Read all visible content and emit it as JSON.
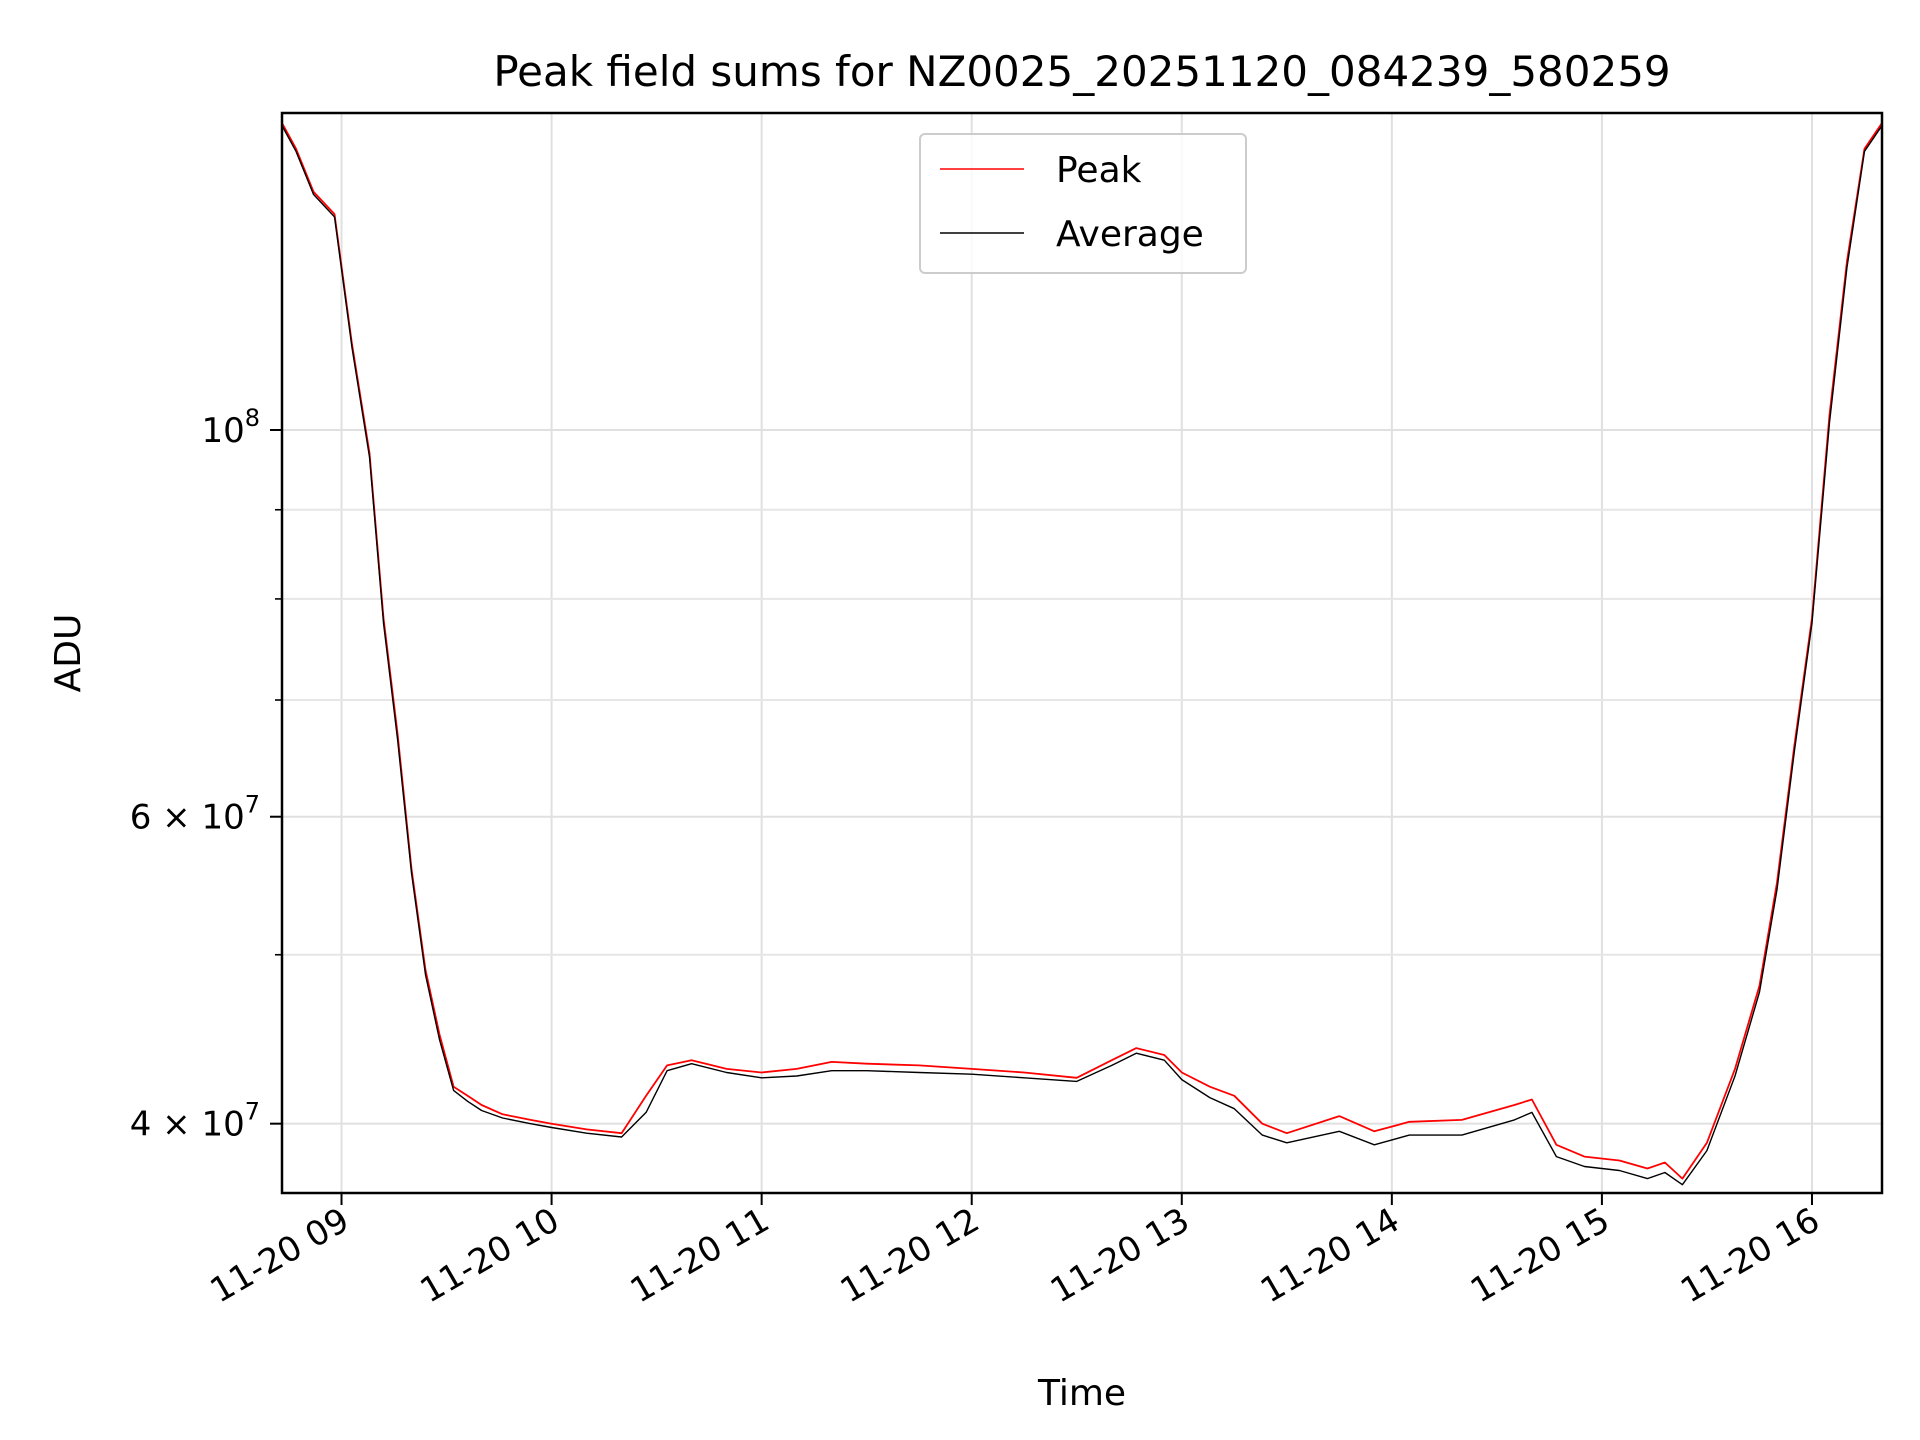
{
  "chart_data": {
    "type": "line",
    "title": "Peak field sums for NZ0025_20251120_084239_580259",
    "xlabel": "Time",
    "ylabel": "ADU",
    "y_scale": "log",
    "ylim": [
      36500000,
      152000000
    ],
    "xlim": [
      "2025-11-20T08:43",
      "2025-11-20T16:20"
    ],
    "grid": true,
    "legend_position": "top-center",
    "x_ticks": [
      {
        "t": "2025-11-20T09:00",
        "label": "11-20 09"
      },
      {
        "t": "2025-11-20T10:00",
        "label": "11-20 10"
      },
      {
        "t": "2025-11-20T11:00",
        "label": "11-20 11"
      },
      {
        "t": "2025-11-20T12:00",
        "label": "11-20 12"
      },
      {
        "t": "2025-11-20T13:00",
        "label": "11-20 13"
      },
      {
        "t": "2025-11-20T14:00",
        "label": "11-20 14"
      },
      {
        "t": "2025-11-20T15:00",
        "label": "11-20 15"
      },
      {
        "t": "2025-11-20T16:00",
        "label": "11-20 16"
      }
    ],
    "y_major_ticks": [
      {
        "value": 40000000,
        "base": "4",
        "exp": "7"
      },
      {
        "value": 60000000,
        "base": "6",
        "exp": "7"
      },
      {
        "value": 100000000,
        "base": "10",
        "exp": "8"
      }
    ],
    "y_minor_ticks": [
      50000000,
      70000000,
      80000000,
      90000000
    ],
    "series": [
      {
        "name": "Peak",
        "color": "#ff0000",
        "x": [
          "2025-11-20T08:43",
          "2025-11-20T08:47",
          "2025-11-20T08:52",
          "2025-11-20T08:58",
          "2025-11-20T09:03",
          "2025-11-20T09:08",
          "2025-11-20T09:12",
          "2025-11-20T09:16",
          "2025-11-20T09:20",
          "2025-11-20T09:24",
          "2025-11-20T09:28",
          "2025-11-20T09:32",
          "2025-11-20T09:36",
          "2025-11-20T09:40",
          "2025-11-20T09:46",
          "2025-11-20T09:54",
          "2025-11-20T10:00",
          "2025-11-20T10:10",
          "2025-11-20T10:20",
          "2025-11-20T10:27",
          "2025-11-20T10:33",
          "2025-11-20T10:40",
          "2025-11-20T10:50",
          "2025-11-20T11:00",
          "2025-11-20T11:10",
          "2025-11-20T11:20",
          "2025-11-20T11:30",
          "2025-11-20T11:45",
          "2025-11-20T12:00",
          "2025-11-20T12:15",
          "2025-11-20T12:30",
          "2025-11-20T12:40",
          "2025-11-20T12:47",
          "2025-11-20T12:55",
          "2025-11-20T13:00",
          "2025-11-20T13:08",
          "2025-11-20T13:15",
          "2025-11-20T13:23",
          "2025-11-20T13:30",
          "2025-11-20T13:45",
          "2025-11-20T13:55",
          "2025-11-20T14:05",
          "2025-11-20T14:20",
          "2025-11-20T14:35",
          "2025-11-20T14:40",
          "2025-11-20T14:47",
          "2025-11-20T14:55",
          "2025-11-20T15:05",
          "2025-11-20T15:13",
          "2025-11-20T15:18",
          "2025-11-20T15:23",
          "2025-11-20T15:30",
          "2025-11-20T15:38",
          "2025-11-20T15:45",
          "2025-11-20T15:50",
          "2025-11-20T15:55",
          "2025-11-20T16:00",
          "2025-11-20T16:05",
          "2025-11-20T16:10",
          "2025-11-20T16:15",
          "2025-11-20T16:20"
        ],
        "y": [
          150000000,
          145000000,
          137000000,
          133000000,
          112000000,
          97000000,
          78000000,
          67000000,
          56000000,
          49000000,
          45000000,
          42000000,
          41500000,
          41000000,
          40500000,
          40200000,
          40000000,
          39700000,
          39500000,
          41500000,
          43200000,
          43500000,
          43000000,
          42800000,
          43000000,
          43400000,
          43300000,
          43200000,
          43000000,
          42800000,
          42500000,
          43500000,
          44200000,
          43800000,
          42800000,
          42000000,
          41500000,
          40000000,
          39500000,
          40400000,
          39600000,
          40100000,
          40200000,
          41000000,
          41300000,
          38900000,
          38300000,
          38100000,
          37700000,
          38000000,
          37200000,
          39000000,
          43000000,
          48000000,
          55000000,
          66000000,
          78000000,
          102000000,
          125000000,
          145000000,
          150000000
        ]
      },
      {
        "name": "Average",
        "color": "#000000",
        "x": [
          "2025-11-20T08:43",
          "2025-11-20T08:47",
          "2025-11-20T08:52",
          "2025-11-20T08:58",
          "2025-11-20T09:03",
          "2025-11-20T09:08",
          "2025-11-20T09:12",
          "2025-11-20T09:16",
          "2025-11-20T09:20",
          "2025-11-20T09:24",
          "2025-11-20T09:28",
          "2025-11-20T09:32",
          "2025-11-20T09:36",
          "2025-11-20T09:40",
          "2025-11-20T09:46",
          "2025-11-20T09:54",
          "2025-11-20T10:00",
          "2025-11-20T10:10",
          "2025-11-20T10:20",
          "2025-11-20T10:27",
          "2025-11-20T10:33",
          "2025-11-20T10:40",
          "2025-11-20T10:50",
          "2025-11-20T11:00",
          "2025-11-20T11:10",
          "2025-11-20T11:20",
          "2025-11-20T11:30",
          "2025-11-20T11:45",
          "2025-11-20T12:00",
          "2025-11-20T12:15",
          "2025-11-20T12:30",
          "2025-11-20T12:40",
          "2025-11-20T12:47",
          "2025-11-20T12:55",
          "2025-11-20T13:00",
          "2025-11-20T13:08",
          "2025-11-20T13:15",
          "2025-11-20T13:23",
          "2025-11-20T13:30",
          "2025-11-20T13:45",
          "2025-11-20T13:55",
          "2025-11-20T14:05",
          "2025-11-20T14:20",
          "2025-11-20T14:35",
          "2025-11-20T14:40",
          "2025-11-20T14:47",
          "2025-11-20T14:55",
          "2025-11-20T15:05",
          "2025-11-20T15:13",
          "2025-11-20T15:18",
          "2025-11-20T15:23",
          "2025-11-20T15:30",
          "2025-11-20T15:38",
          "2025-11-20T15:45",
          "2025-11-20T15:50",
          "2025-11-20T15:55",
          "2025-11-20T16:00",
          "2025-11-20T16:05",
          "2025-11-20T16:10",
          "2025-11-20T16:15",
          "2025-11-20T16:20"
        ],
        "y": [
          149500000,
          144500000,
          136500000,
          132500000,
          111500000,
          96500000,
          77500000,
          66500000,
          55700000,
          48700000,
          44700000,
          41800000,
          41200000,
          40700000,
          40300000,
          40000000,
          39800000,
          39500000,
          39300000,
          40600000,
          42900000,
          43300000,
          42800000,
          42500000,
          42600000,
          42900000,
          42900000,
          42800000,
          42700000,
          42500000,
          42300000,
          43200000,
          43900000,
          43500000,
          42400000,
          41400000,
          40800000,
          39400000,
          39000000,
          39600000,
          38900000,
          39400000,
          39400000,
          40200000,
          40600000,
          38300000,
          37800000,
          37600000,
          37200000,
          37500000,
          36900000,
          38600000,
          42600000,
          47600000,
          54500000,
          65500000,
          77500000,
          101000000,
          124000000,
          144500000,
          149500000
        ]
      }
    ]
  }
}
